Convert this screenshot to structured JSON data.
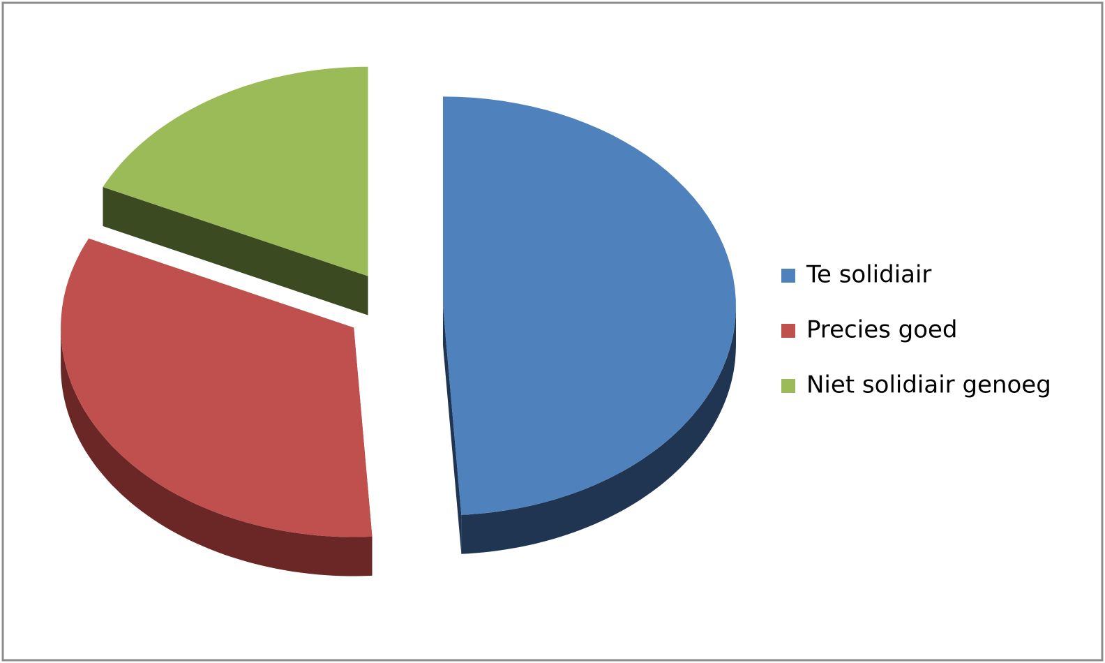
{
  "chart_data": {
    "type": "pie",
    "categories": [
      "Te solidiair",
      "Precies goed",
      "Niet solidiair genoeg"
    ],
    "values": [
      49,
      33,
      18
    ],
    "colors": [
      "#4f81bd",
      "#c0504d",
      "#9bbb59"
    ],
    "side_colors": [
      "#1f3552",
      "#6b2725",
      "#3b4a20"
    ],
    "legend": "right"
  }
}
